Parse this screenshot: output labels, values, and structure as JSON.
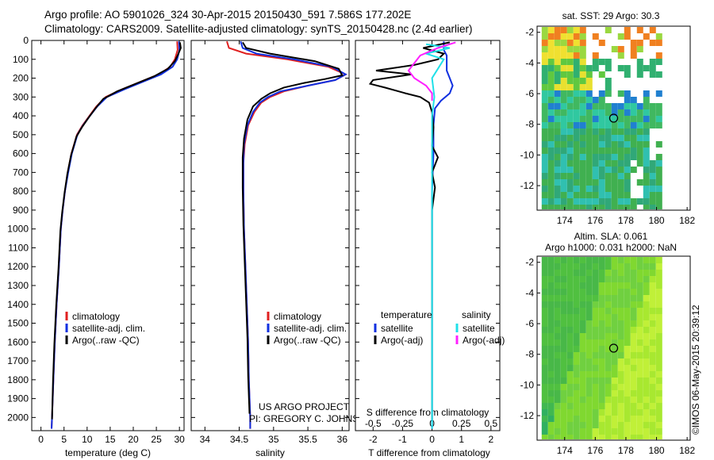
{
  "titles": {
    "line1": "Argo profile: AO 5901026_324 30-Apr-2015 20150430_591 7.586S 177.202E",
    "line2": "Climatology: CARS2009. Satellite-adjusted climatology: synTS_20150428.nc (2.4d earlier)"
  },
  "timestamp": "©IMOS 06-May-2015 20:39:12",
  "colors": {
    "climatology": "#e02020",
    "satellite": "#1030e0",
    "argo": "#000000",
    "salinity_satellite": "#20e0e8",
    "salinity_argo": "#ff20ff",
    "panel_bg": "#ffffff"
  },
  "chart_data": [
    {
      "type": "line",
      "id": "temperature",
      "xlabel": "temperature (deg C)",
      "xlim": [
        -2,
        31
      ],
      "xticks": [
        0,
        5,
        10,
        15,
        20,
        25,
        30
      ],
      "ylim": [
        2070,
        0
      ],
      "yticks": [
        0,
        100,
        200,
        300,
        400,
        500,
        600,
        700,
        800,
        900,
        1000,
        1100,
        1200,
        1300,
        1400,
        1500,
        1600,
        1700,
        1800,
        1900,
        2000
      ],
      "legend": [
        "climatology",
        "satellite-adj. clim.",
        "Argo(..raw -QC)"
      ],
      "series": [
        {
          "name": "climatology",
          "color_key": "climatology",
          "points": [
            [
              29.5,
              5
            ],
            [
              29.6,
              50
            ],
            [
              29.0,
              100
            ],
            [
              28.0,
              140
            ],
            [
              25.5,
              180
            ],
            [
              21.5,
              220
            ],
            [
              17.5,
              260
            ],
            [
              14.0,
              300
            ],
            [
              12.0,
              350
            ],
            [
              10.5,
              400
            ],
            [
              9.0,
              450
            ],
            [
              7.8,
              500
            ],
            [
              6.6,
              600
            ],
            [
              5.8,
              700
            ],
            [
              5.2,
              800
            ],
            [
              4.7,
              900
            ],
            [
              4.3,
              1000
            ],
            [
              3.9,
              1200
            ],
            [
              3.4,
              1400
            ],
            [
              3.0,
              1600
            ],
            [
              2.7,
              1800
            ],
            [
              2.4,
              2000
            ],
            [
              2.3,
              2060
            ]
          ]
        },
        {
          "name": "satellite-adj. clim.",
          "color_key": "satellite",
          "points": [
            [
              29.9,
              5
            ],
            [
              30.0,
              50
            ],
            [
              29.5,
              100
            ],
            [
              28.5,
              140
            ],
            [
              26.0,
              180
            ],
            [
              22.0,
              220
            ],
            [
              18.0,
              260
            ],
            [
              14.3,
              300
            ],
            [
              12.2,
              350
            ],
            [
              10.6,
              400
            ],
            [
              9.1,
              450
            ],
            [
              7.9,
              500
            ],
            [
              6.7,
              600
            ],
            [
              5.9,
              700
            ],
            [
              5.2,
              800
            ],
            [
              4.7,
              900
            ],
            [
              4.3,
              1000
            ],
            [
              3.9,
              1200
            ],
            [
              3.4,
              1400
            ],
            [
              3.0,
              1600
            ],
            [
              2.7,
              1800
            ],
            [
              2.4,
              2000
            ],
            [
              2.3,
              2060
            ]
          ]
        },
        {
          "name": "Argo(..raw -QC)",
          "color_key": "argo",
          "points": [
            [
              30.1,
              10
            ],
            [
              30.3,
              40
            ],
            [
              29.6,
              80
            ],
            [
              29.0,
              110
            ],
            [
              27.5,
              150
            ],
            [
              24.5,
              190
            ],
            [
              20.5,
              230
            ],
            [
              16.5,
              270
            ],
            [
              13.5,
              310
            ],
            [
              11.8,
              360
            ],
            [
              10.3,
              410
            ],
            [
              8.9,
              460
            ],
            [
              7.7,
              510
            ],
            [
              6.5,
              610
            ],
            [
              5.7,
              710
            ],
            [
              5.1,
              810
            ],
            [
              4.6,
              910
            ],
            [
              4.2,
              1010
            ],
            [
              3.8,
              1210
            ],
            [
              3.3,
              1410
            ],
            [
              2.9,
              1610
            ],
            [
              2.6,
              1810
            ],
            [
              2.4,
              2010
            ]
          ]
        }
      ]
    },
    {
      "type": "line",
      "id": "salinity",
      "xlabel": "salinity",
      "xlim": [
        33.8,
        36.1
      ],
      "xticks": [
        34,
        34.5,
        35,
        35.5,
        36
      ],
      "ylim": [
        2070,
        0
      ],
      "legend": [
        "climatology",
        "satellite-adj. clim.",
        "Argo(..raw -QC)"
      ],
      "annotation": [
        "US ARGO PROJECT",
        "PI: GREGORY C. JOHNSON"
      ],
      "series": [
        {
          "name": "climatology",
          "color_key": "climatology",
          "points": [
            [
              34.32,
              5
            ],
            [
              34.35,
              40
            ],
            [
              34.6,
              70
            ],
            [
              35.2,
              100
            ],
            [
              35.8,
              140
            ],
            [
              36.05,
              180
            ],
            [
              35.9,
              210
            ],
            [
              35.5,
              240
            ],
            [
              35.15,
              270
            ],
            [
              34.95,
              300
            ],
            [
              34.82,
              330
            ],
            [
              34.72,
              380
            ],
            [
              34.63,
              450
            ],
            [
              34.58,
              550
            ],
            [
              34.56,
              650
            ],
            [
              34.56,
              800
            ],
            [
              34.57,
              1000
            ],
            [
              34.59,
              1200
            ],
            [
              34.61,
              1400
            ],
            [
              34.63,
              1600
            ],
            [
              34.64,
              1800
            ],
            [
              34.66,
              2000
            ],
            [
              34.66,
              2060
            ]
          ]
        },
        {
          "name": "satellite-adj. clim.",
          "color_key": "satellite",
          "points": [
            [
              34.52,
              5
            ],
            [
              34.55,
              40
            ],
            [
              34.75,
              70
            ],
            [
              35.3,
              100
            ],
            [
              35.85,
              140
            ],
            [
              36.05,
              180
            ],
            [
              35.9,
              210
            ],
            [
              35.5,
              240
            ],
            [
              35.1,
              270
            ],
            [
              34.92,
              300
            ],
            [
              34.8,
              330
            ],
            [
              34.7,
              380
            ],
            [
              34.62,
              450
            ],
            [
              34.57,
              550
            ],
            [
              34.56,
              650
            ],
            [
              34.56,
              800
            ],
            [
              34.57,
              1000
            ],
            [
              34.59,
              1200
            ],
            [
              34.61,
              1400
            ],
            [
              34.63,
              1600
            ],
            [
              34.64,
              1800
            ],
            [
              34.66,
              2000
            ],
            [
              34.66,
              2060
            ]
          ]
        },
        {
          "name": "Argo(..raw -QC)",
          "color_key": "argo",
          "points": [
            [
              34.55,
              10
            ],
            [
              34.6,
              40
            ],
            [
              34.95,
              70
            ],
            [
              35.6,
              110
            ],
            [
              35.95,
              150
            ],
            [
              36.0,
              185
            ],
            [
              35.75,
              205
            ],
            [
              35.45,
              225
            ],
            [
              35.15,
              250
            ],
            [
              34.95,
              280
            ],
            [
              34.82,
              310
            ],
            [
              34.7,
              350
            ],
            [
              34.62,
              420
            ],
            [
              34.57,
              520
            ],
            [
              34.55,
              620
            ],
            [
              34.55,
              780
            ],
            [
              34.56,
              980
            ],
            [
              34.58,
              1180
            ],
            [
              34.6,
              1380
            ],
            [
              34.62,
              1580
            ],
            [
              34.63,
              1780
            ],
            [
              34.65,
              1980
            ]
          ]
        }
      ]
    },
    {
      "type": "line",
      "id": "difference",
      "xlabel": "T difference from climatology",
      "xlabel_top": "S difference from climatology",
      "xlim": [
        -2.6,
        2.3
      ],
      "xticks": [
        -2,
        -1,
        0,
        1,
        2
      ],
      "xticks_top": [
        -0.5,
        -0.25,
        0,
        0.25,
        0.5
      ],
      "ylim": [
        2070,
        0
      ],
      "legend_groups": [
        {
          "title": "temperature",
          "items": [
            "satellite",
            "Argo(-adj)"
          ]
        },
        {
          "title": "salinity",
          "items": [
            "satellite",
            "Argo(-adj)"
          ]
        }
      ],
      "series": [
        {
          "name": "satellite",
          "group": "temperature",
          "color_key": "satellite",
          "points": [
            [
              0.4,
              5
            ],
            [
              0.4,
              50
            ],
            [
              0.5,
              80
            ],
            [
              0.5,
              120
            ],
            [
              0.5,
              160
            ],
            [
              0.6,
              200
            ],
            [
              0.7,
              240
            ],
            [
              0.6,
              280
            ],
            [
              0.3,
              320
            ],
            [
              0.1,
              360
            ],
            [
              0.05,
              450
            ],
            [
              0.05,
              600
            ],
            [
              0.0,
              800
            ],
            [
              0.0,
              1100
            ],
            [
              0.0,
              1400
            ],
            [
              0.0,
              1700
            ],
            [
              0.0,
              2000
            ],
            [
              0.0,
              2060
            ]
          ]
        },
        {
          "name": "Argo(-adj)",
          "group": "temperature",
          "color_key": "argo",
          "points": [
            [
              0.6,
              10
            ],
            [
              -0.3,
              40
            ],
            [
              0.4,
              70
            ],
            [
              0.2,
              100
            ],
            [
              -0.6,
              130
            ],
            [
              -1.9,
              160
            ],
            [
              -0.7,
              180
            ],
            [
              -2.0,
              210
            ],
            [
              -2.1,
              230
            ],
            [
              -1.6,
              250
            ],
            [
              -0.9,
              280
            ],
            [
              -0.4,
              300
            ],
            [
              -0.1,
              330
            ],
            [
              0.0,
              380
            ],
            [
              0.05,
              460
            ],
            [
              0.0,
              560
            ],
            [
              0.2,
              620
            ],
            [
              0.0,
              700
            ],
            [
              0.1,
              780
            ],
            [
              0.0,
              900
            ],
            [
              0.0,
              1100
            ],
            [
              0.0,
              1400
            ],
            [
              0.0,
              1700
            ],
            [
              0.0,
              2010
            ]
          ]
        },
        {
          "name": "satellite",
          "group": "salinity",
          "color_key": "salinity_satellite",
          "points": [
            [
              -0.05,
              20
            ],
            [
              0.15,
              40
            ],
            [
              -0.05,
              70
            ],
            [
              0.1,
              100
            ],
            [
              0.05,
              150
            ],
            [
              0.0,
              200
            ],
            [
              0.02,
              300
            ],
            [
              0.0,
              400
            ],
            [
              0.0,
              700
            ],
            [
              0.0,
              1000
            ],
            [
              0.0,
              1400
            ],
            [
              0.0,
              1800
            ],
            [
              0.0,
              2060
            ]
          ]
        },
        {
          "name": "Argo(-adj)",
          "group": "salinity",
          "color_key": "salinity_argo",
          "points": [
            [
              0.2,
              10
            ],
            [
              0.05,
              40
            ],
            [
              -0.1,
              80
            ],
            [
              -0.15,
              120
            ],
            [
              -0.2,
              160
            ],
            [
              -0.15,
              200
            ],
            [
              -0.05,
              240
            ],
            [
              0.0,
              280
            ],
            [
              0.0,
              320
            ]
          ]
        }
      ]
    },
    {
      "type": "heatmap",
      "id": "sst-map",
      "title": "sat. SST: 29 Argo: 30.3",
      "xlim": [
        172.2,
        182.2
      ],
      "ylim": [
        -13.6,
        -1.6
      ],
      "xticks": [
        174,
        176,
        178,
        180,
        182
      ],
      "yticks": [
        -2,
        -4,
        -6,
        -8,
        -10,
        -12
      ],
      "data_extent_x": [
        172.5,
        180.2
      ],
      "argo_position": [
        177.2,
        -7.6
      ]
    },
    {
      "type": "heatmap",
      "id": "sla-map",
      "title": [
        "Altim. SLA: 0.061",
        "Argo h1000: 0.031 h2000: NaN"
      ],
      "xlim": [
        172.2,
        182.2
      ],
      "ylim": [
        -13.6,
        -1.6
      ],
      "xticks": [
        174,
        176,
        178,
        180,
        182
      ],
      "yticks": [
        -2,
        -4,
        -6,
        -8,
        -10,
        -12
      ],
      "data_extent_x": [
        172.5,
        180.2
      ],
      "argo_position": [
        177.2,
        -7.6
      ]
    }
  ]
}
